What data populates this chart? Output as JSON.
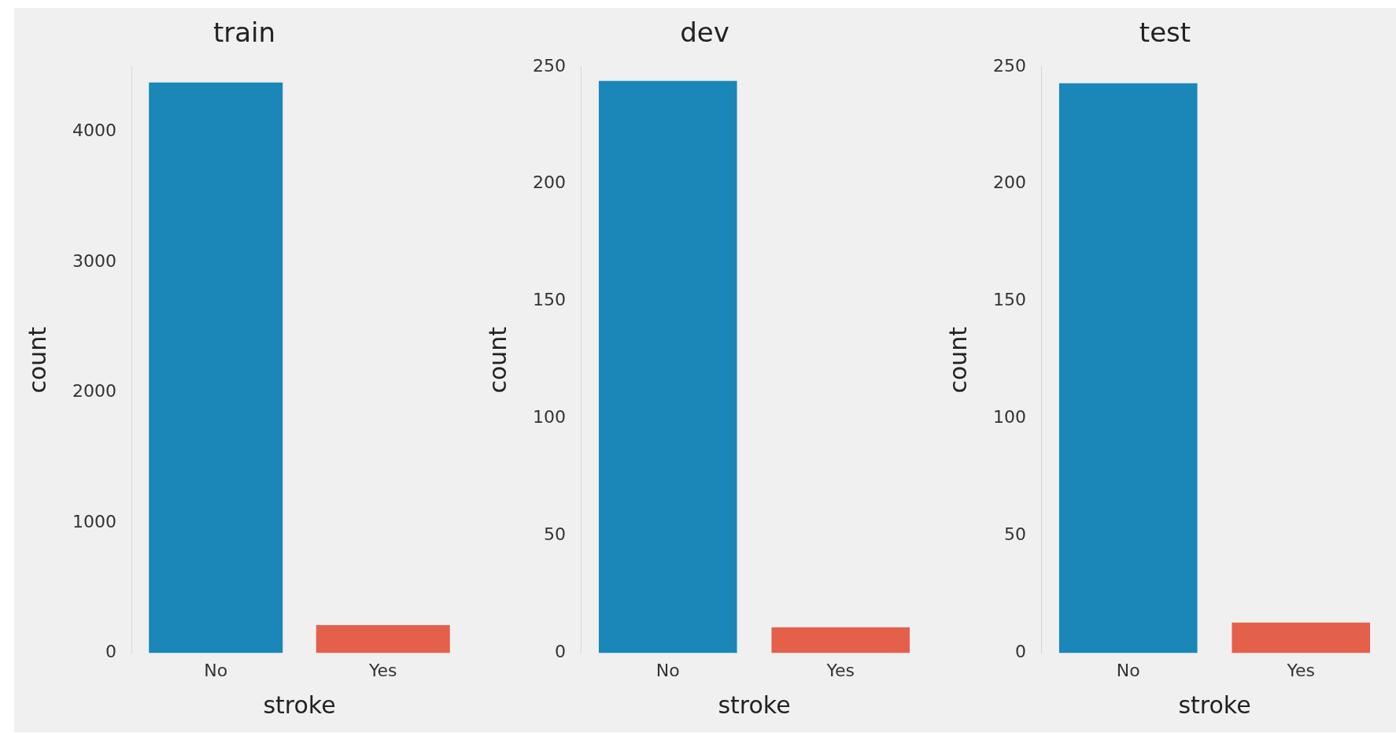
{
  "chart_data": [
    {
      "type": "bar",
      "title": "train",
      "xlabel": "stroke",
      "ylabel": "count",
      "categories": [
        "No",
        "Yes"
      ],
      "values": [
        4380,
        215
      ],
      "colors": [
        "#1b86b8",
        "#e5604a"
      ],
      "ylim": [
        0,
        4500
      ],
      "yticks": [
        0,
        1000,
        2000,
        3000,
        4000
      ],
      "grid": false
    },
    {
      "type": "bar",
      "title": "dev",
      "xlabel": "stroke",
      "ylabel": "count",
      "categories": [
        "No",
        "Yes"
      ],
      "values": [
        244,
        11
      ],
      "colors": [
        "#1b86b8",
        "#e5604a"
      ],
      "ylim": [
        0,
        250
      ],
      "yticks": [
        0,
        50,
        100,
        150,
        200,
        250
      ],
      "grid": false
    },
    {
      "type": "bar",
      "title": "test",
      "xlabel": "stroke",
      "ylabel": "count",
      "categories": [
        "No",
        "Yes"
      ],
      "values": [
        243,
        13
      ],
      "colors": [
        "#1b86b8",
        "#e5604a"
      ],
      "ylim": [
        0,
        250
      ],
      "yticks": [
        0,
        50,
        100,
        150,
        200,
        250
      ],
      "grid": false
    }
  ]
}
